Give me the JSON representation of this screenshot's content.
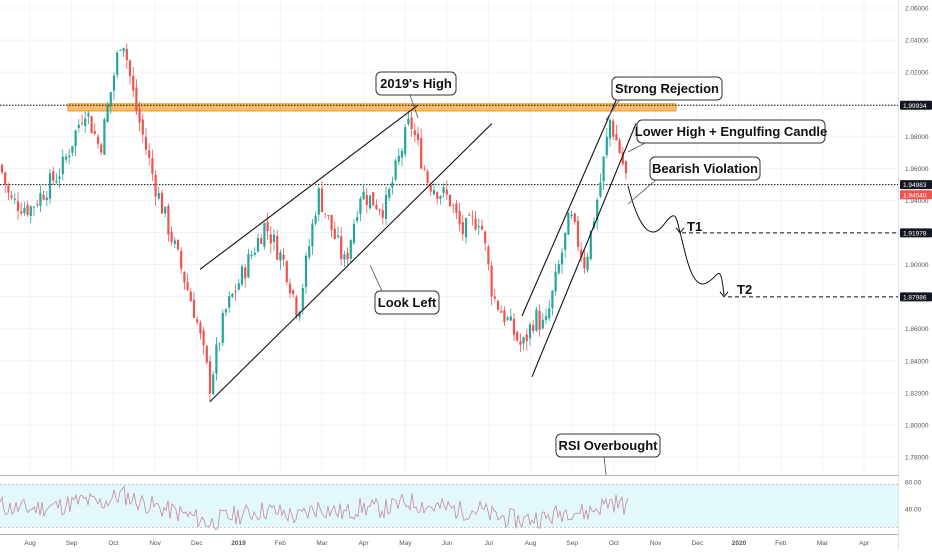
{
  "chart_data": {
    "type": "candlestick",
    "price_axis": {
      "min": 1.77,
      "max": 2.065,
      "ticks": [
        "2.06000",
        "2.04000",
        "2.02000",
        "2.00000",
        "1.98000",
        "1.96000",
        "1.94000",
        "1.92000",
        "1.90000",
        "1.88000",
        "1.86000",
        "1.84000",
        "1.82000",
        "1.80000",
        "1.78000"
      ],
      "tick_values": [
        2.06,
        2.04,
        2.02,
        2.0,
        1.98,
        1.96,
        1.94,
        1.92,
        1.9,
        1.88,
        1.86,
        1.84,
        1.82,
        1.8,
        1.78
      ]
    },
    "time_axis": {
      "labels": [
        "Aug",
        "Sep",
        "Oct",
        "Nov",
        "Dec",
        "2019",
        "Feb",
        "Mar",
        "Apr",
        "May",
        "Jun",
        "Jul",
        "Aug",
        "Sep",
        "Oct",
        "Nov",
        "Dec",
        "2020",
        "Feb",
        "Mar",
        "Apr"
      ],
      "bold": [
        "2019",
        "2020"
      ]
    },
    "price_tags": [
      {
        "label": "1.99934",
        "value": 1.99934,
        "color": "#131722",
        "line": "dotted"
      },
      {
        "label": "1.94983",
        "value": 1.94983,
        "color": "#131722",
        "line": "dotted"
      },
      {
        "label": "1.94540",
        "value": 1.9454,
        "color": "#ef5350",
        "line": "none"
      },
      {
        "label": "1.91978",
        "value": 1.91978,
        "color": "#131722",
        "line": "dashed"
      },
      {
        "label": "1.87986",
        "value": 1.87986,
        "color": "#131722",
        "line": "dashed"
      }
    ],
    "resistance_zone": {
      "top": 2.0003,
      "bottom": 1.9958,
      "color": "#f7a440"
    },
    "trendlines": [
      {
        "from": [
          -0.2,
          1.896
        ],
        "to": [
          0.25,
          1.9995
        ]
      },
      {
        "from": [
          -0.33,
          1.8145
        ],
        "to": [
          0.33,
          1.988
        ]
      },
      {
        "from": [
          0.76,
          1.868
        ],
        "to": [
          0.815,
          2.008
        ]
      },
      {
        "from": [
          0.773,
          1.83
        ],
        "to": [
          0.836,
          1.988
        ]
      }
    ],
    "waypoints": {
      "y_values": [
        1.949,
        1.917,
        1.928,
        1.918,
        1.916,
        1.887,
        1.902,
        1.881
      ],
      "t_values": [
        0.843,
        0.86,
        0.883,
        0.9,
        0.918,
        0.936,
        0.953,
        0.973
      ]
    },
    "targets": [
      {
        "label": "T1",
        "value": 1.91978
      },
      {
        "label": "T2",
        "value": 1.87986
      }
    ],
    "annotations": [
      {
        "label": "2019's High"
      },
      {
        "label": "Strong Rejection"
      },
      {
        "label": "Lower High + Engulfing Candle"
      },
      {
        "label": "Bearish Violation"
      },
      {
        "label": "Look Left"
      },
      {
        "label": "RSI Overbought"
      }
    ],
    "rsi": {
      "ticks": [
        "80.00",
        "40.00"
      ],
      "tick_values": [
        80,
        40
      ],
      "band": [
        30,
        70
      ],
      "color": "#c48a9c"
    },
    "colors": {
      "up": "#26a69a",
      "down": "#ef5350",
      "rsi_band": "#e0f7fa"
    }
  }
}
